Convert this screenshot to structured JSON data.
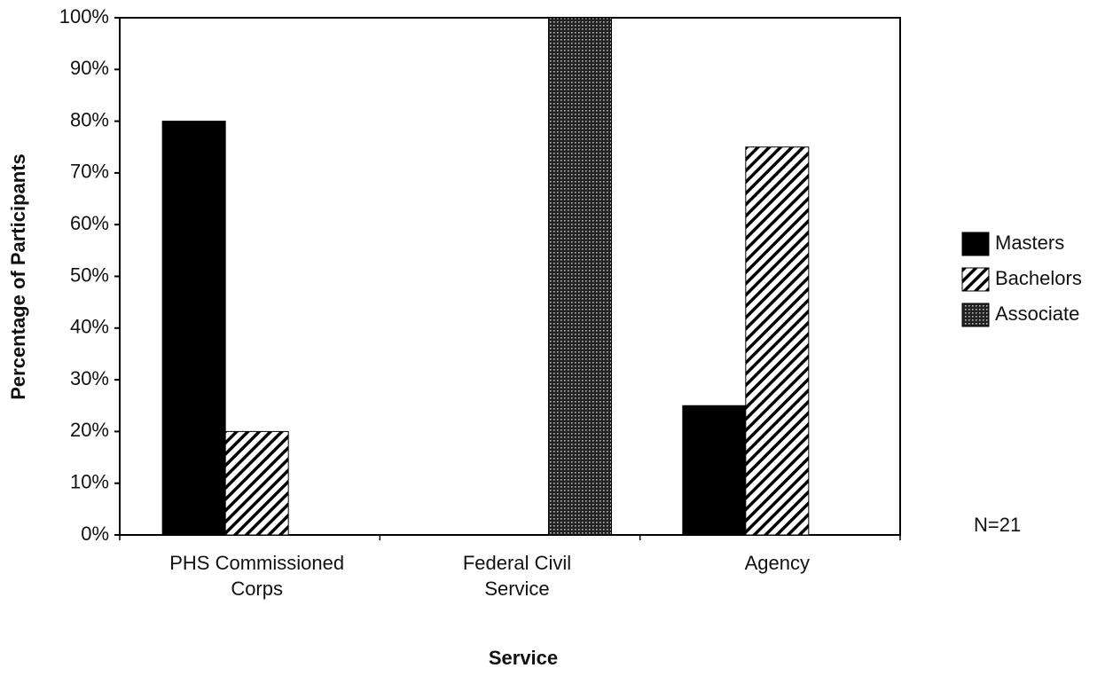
{
  "chart_data": {
    "type": "bar",
    "y_label": "Percentage of Participants",
    "x_label": "Service",
    "annotation": "N=21",
    "categories": [
      "PHS Commissioned Corps",
      "Federal Civil Service",
      "Agency"
    ],
    "series": [
      {
        "name": "Masters",
        "color": "#000000",
        "pattern": "solid",
        "values": [
          80,
          0,
          25
        ]
      },
      {
        "name": "Bachelors",
        "color": "#000000",
        "pattern": "hatch",
        "values": [
          20,
          0,
          75
        ]
      },
      {
        "name": "Associate",
        "color": "#000000",
        "pattern": "dots",
        "values": [
          0,
          100,
          0
        ]
      }
    ],
    "ylim": [
      0,
      100
    ],
    "yticks": [
      {
        "value": 0,
        "label": "0%"
      },
      {
        "value": 10,
        "label": "10%"
      },
      {
        "value": 20,
        "label": "20%"
      },
      {
        "value": 30,
        "label": "30%"
      },
      {
        "value": 40,
        "label": "40%"
      },
      {
        "value": 50,
        "label": "50%"
      },
      {
        "value": 60,
        "label": "60%"
      },
      {
        "value": 70,
        "label": "70%"
      },
      {
        "value": 80,
        "label": "80%"
      },
      {
        "value": 90,
        "label": "90%"
      },
      {
        "value": 100,
        "label": "100%"
      }
    ],
    "legend": "right"
  }
}
